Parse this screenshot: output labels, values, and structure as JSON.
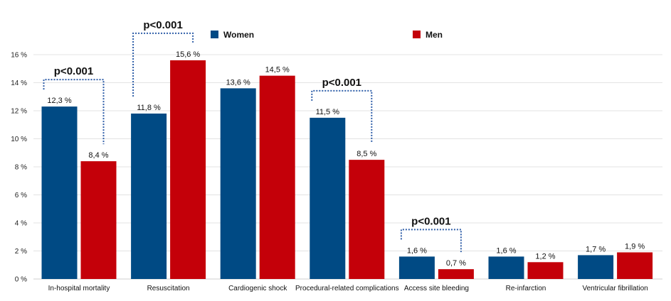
{
  "chart_data": {
    "type": "bar",
    "categories": [
      "In-hospital mortality",
      "Resuscitation",
      "Cardiogenic shock",
      "Procedural-related complications",
      "Access site bleeding",
      "Re-infarction",
      "Ventricular fibrillation"
    ],
    "series": [
      {
        "name": "Women",
        "color": "#004a84",
        "values": [
          12.3,
          11.8,
          13.6,
          11.5,
          1.6,
          1.6,
          1.7
        ],
        "labels": [
          "12,3 %",
          "11,8 %",
          "13,6 %",
          "11,5 %",
          "1,6 %",
          "1,6 %",
          "1,7 %"
        ]
      },
      {
        "name": "Men",
        "color": "#c40009",
        "values": [
          8.4,
          15.6,
          14.5,
          8.5,
          0.7,
          1.2,
          1.9
        ],
        "labels": [
          "8,4 %",
          "15,6 %",
          "14,5 %",
          "8,5 %",
          "0,7 %",
          "1,2 %",
          "1,9 %"
        ]
      }
    ],
    "ylim": [
      0,
      16
    ],
    "yticks": [
      0,
      2,
      4,
      6,
      8,
      10,
      12,
      14,
      16
    ],
    "ytick_labels": [
      "0 %",
      "2 %",
      "4 %",
      "6 %",
      "8 %",
      "10 %",
      "12 %",
      "14 %",
      "16 %"
    ],
    "grid": true,
    "legend_position": "top-center",
    "annotations": [
      {
        "text": "p<0.001",
        "category_index": 0
      },
      {
        "text": "p<0.001",
        "category_index": 1
      },
      {
        "text": "p<0.001",
        "category_index": 3
      },
      {
        "text": "p<0.001",
        "category_index": 4
      }
    ]
  }
}
